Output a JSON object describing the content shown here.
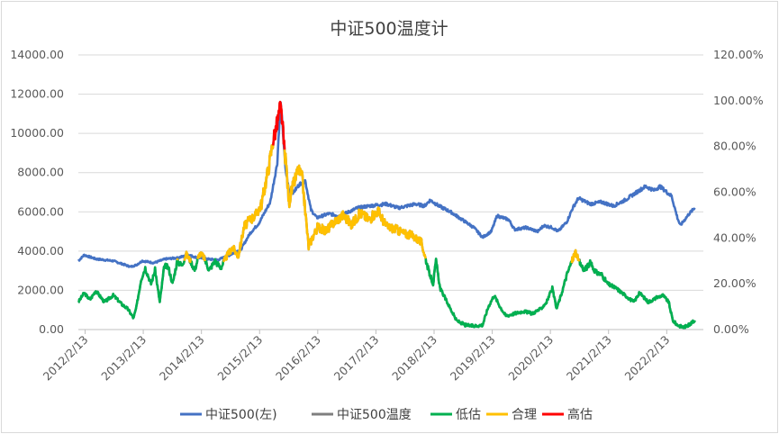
{
  "chart_data": {
    "type": "line",
    "title": "中证500温度计",
    "x_tick_labels": [
      "2012/2/13",
      "2013/2/13",
      "2014/2/13",
      "2015/2/13",
      "2016/2/13",
      "2017/2/13",
      "2018/2/13",
      "2019/2/13",
      "2020/2/13",
      "2021/2/13",
      "2022/2/13"
    ],
    "x_range": [
      "2012/1/1",
      "2022/9/30"
    ],
    "y_left": {
      "min": 0,
      "max": 14000,
      "step": 2000,
      "tick_labels": [
        "0.00",
        "2000.00",
        "4000.00",
        "6000.00",
        "8000.00",
        "10000.00",
        "12000.00",
        "14000.00"
      ]
    },
    "y_right": {
      "min": 0,
      "max": 1.2,
      "step": 0.2,
      "tick_labels": [
        "0.00%",
        "20.00%",
        "40.00%",
        "60.00%",
        "80.00%",
        "100.00%",
        "120.00%"
      ]
    },
    "grid": true,
    "legend_position": "bottom",
    "series_index": {
      "name": "中证500(左)",
      "axis": "left",
      "color": "#4472C4",
      "points": [
        [
          2012.0,
          3500
        ],
        [
          2012.1,
          3800
        ],
        [
          2012.3,
          3600
        ],
        [
          2012.6,
          3500
        ],
        [
          2012.9,
          3200
        ],
        [
          2013.0,
          3300
        ],
        [
          2013.1,
          3500
        ],
        [
          2013.3,
          3400
        ],
        [
          2013.5,
          3600
        ],
        [
          2013.7,
          3650
        ],
        [
          2013.9,
          3800
        ],
        [
          2014.0,
          3700
        ],
        [
          2014.2,
          3600
        ],
        [
          2014.4,
          3550
        ],
        [
          2014.6,
          3800
        ],
        [
          2014.8,
          4100
        ],
        [
          2014.95,
          4900
        ],
        [
          2015.1,
          5400
        ],
        [
          2015.3,
          6500
        ],
        [
          2015.42,
          8500
        ],
        [
          2015.45,
          10200
        ],
        [
          2015.48,
          11500
        ],
        [
          2015.52,
          10000
        ],
        [
          2015.56,
          8200
        ],
        [
          2015.62,
          7100
        ],
        [
          2015.7,
          7000
        ],
        [
          2015.8,
          7400
        ],
        [
          2015.9,
          7600
        ],
        [
          2016.0,
          6100
        ],
        [
          2016.1,
          5700
        ],
        [
          2016.3,
          5900
        ],
        [
          2016.5,
          5800
        ],
        [
          2016.8,
          6200
        ],
        [
          2017.0,
          6300
        ],
        [
          2017.3,
          6400
        ],
        [
          2017.5,
          6200
        ],
        [
          2017.8,
          6400
        ],
        [
          2017.95,
          6300
        ],
        [
          2018.05,
          6600
        ],
        [
          2018.2,
          6300
        ],
        [
          2018.4,
          6000
        ],
        [
          2018.6,
          5600
        ],
        [
          2018.8,
          5200
        ],
        [
          2018.95,
          4700
        ],
        [
          2019.1,
          5000
        ],
        [
          2019.2,
          5800
        ],
        [
          2019.4,
          5600
        ],
        [
          2019.5,
          5100
        ],
        [
          2019.7,
          5200
        ],
        [
          2019.9,
          5000
        ],
        [
          2020.0,
          5300
        ],
        [
          2020.15,
          5200
        ],
        [
          2020.25,
          5000
        ],
        [
          2020.4,
          5500
        ],
        [
          2020.5,
          6200
        ],
        [
          2020.6,
          6700
        ],
        [
          2020.8,
          6400
        ],
        [
          2021.0,
          6500
        ],
        [
          2021.2,
          6300
        ],
        [
          2021.4,
          6600
        ],
        [
          2021.6,
          7000
        ],
        [
          2021.75,
          7300
        ],
        [
          2021.9,
          7100
        ],
        [
          2022.0,
          7300
        ],
        [
          2022.2,
          6800
        ],
        [
          2022.3,
          5700
        ],
        [
          2022.35,
          5300
        ],
        [
          2022.5,
          5900
        ],
        [
          2022.6,
          6200
        ]
      ]
    },
    "series_temperature": {
      "name": "中证500温度",
      "axis": "right",
      "color": "#7F7F7F",
      "bands": [
        {
          "name": "低估",
          "color": "#00B050",
          "from": 0,
          "to": 0.3
        },
        {
          "name": "合理",
          "color": "#FFC000",
          "from": 0.3,
          "to": 0.8
        },
        {
          "name": "高估",
          "color": "#FF0000",
          "from": 0.8,
          "to": 1.2
        }
      ],
      "points": [
        [
          2012.0,
          0.12
        ],
        [
          2012.1,
          0.16
        ],
        [
          2012.2,
          0.13
        ],
        [
          2012.3,
          0.17
        ],
        [
          2012.45,
          0.12
        ],
        [
          2012.6,
          0.15
        ],
        [
          2012.75,
          0.11
        ],
        [
          2012.85,
          0.09
        ],
        [
          2012.95,
          0.05
        ],
        [
          2013.0,
          0.1
        ],
        [
          2013.08,
          0.22
        ],
        [
          2013.15,
          0.27
        ],
        [
          2013.25,
          0.2
        ],
        [
          2013.32,
          0.26
        ],
        [
          2013.4,
          0.12
        ],
        [
          2013.48,
          0.28
        ],
        [
          2013.55,
          0.27
        ],
        [
          2013.62,
          0.2
        ],
        [
          2013.7,
          0.3
        ],
        [
          2013.78,
          0.28
        ],
        [
          2013.85,
          0.33
        ],
        [
          2013.93,
          0.3
        ],
        [
          2014.0,
          0.26
        ],
        [
          2014.08,
          0.33
        ],
        [
          2014.15,
          0.32
        ],
        [
          2014.25,
          0.26
        ],
        [
          2014.35,
          0.3
        ],
        [
          2014.45,
          0.27
        ],
        [
          2014.55,
          0.32
        ],
        [
          2014.65,
          0.36
        ],
        [
          2014.75,
          0.32
        ],
        [
          2014.85,
          0.45
        ],
        [
          2014.95,
          0.48
        ],
        [
          2015.05,
          0.5
        ],
        [
          2015.15,
          0.55
        ],
        [
          2015.28,
          0.72
        ],
        [
          2015.35,
          0.83
        ],
        [
          2015.42,
          0.9
        ],
        [
          2015.47,
          0.97
        ],
        [
          2015.5,
          0.93
        ],
        [
          2015.53,
          0.82
        ],
        [
          2015.58,
          0.7
        ],
        [
          2015.62,
          0.55
        ],
        [
          2015.66,
          0.6
        ],
        [
          2015.72,
          0.65
        ],
        [
          2015.78,
          0.7
        ],
        [
          2015.85,
          0.66
        ],
        [
          2015.9,
          0.52
        ],
        [
          2015.96,
          0.36
        ],
        [
          2016.02,
          0.4
        ],
        [
          2016.12,
          0.45
        ],
        [
          2016.25,
          0.43
        ],
        [
          2016.4,
          0.47
        ],
        [
          2016.55,
          0.5
        ],
        [
          2016.7,
          0.46
        ],
        [
          2016.85,
          0.51
        ],
        [
          2017.0,
          0.48
        ],
        [
          2017.15,
          0.52
        ],
        [
          2017.3,
          0.45
        ],
        [
          2017.45,
          0.44
        ],
        [
          2017.6,
          0.42
        ],
        [
          2017.75,
          0.41
        ],
        [
          2017.9,
          0.38
        ],
        [
          2017.98,
          0.3
        ],
        [
          2018.03,
          0.25
        ],
        [
          2018.1,
          0.2
        ],
        [
          2018.15,
          0.3
        ],
        [
          2018.22,
          0.18
        ],
        [
          2018.3,
          0.14
        ],
        [
          2018.4,
          0.09
        ],
        [
          2018.5,
          0.04
        ],
        [
          2018.65,
          0.02
        ],
        [
          2018.8,
          0.015
        ],
        [
          2018.95,
          0.02
        ],
        [
          2019.05,
          0.1
        ],
        [
          2019.15,
          0.15
        ],
        [
          2019.25,
          0.1
        ],
        [
          2019.35,
          0.06
        ],
        [
          2019.5,
          0.07
        ],
        [
          2019.65,
          0.08
        ],
        [
          2019.8,
          0.07
        ],
        [
          2019.95,
          0.09
        ],
        [
          2020.05,
          0.12
        ],
        [
          2020.15,
          0.18
        ],
        [
          2020.22,
          0.09
        ],
        [
          2020.3,
          0.15
        ],
        [
          2020.4,
          0.24
        ],
        [
          2020.5,
          0.31
        ],
        [
          2020.55,
          0.34
        ],
        [
          2020.6,
          0.3
        ],
        [
          2020.7,
          0.26
        ],
        [
          2020.8,
          0.29
        ],
        [
          2020.9,
          0.25
        ],
        [
          2021.0,
          0.24
        ],
        [
          2021.1,
          0.2
        ],
        [
          2021.25,
          0.18
        ],
        [
          2021.4,
          0.15
        ],
        [
          2021.55,
          0.12
        ],
        [
          2021.65,
          0.16
        ],
        [
          2021.8,
          0.12
        ],
        [
          2021.95,
          0.14
        ],
        [
          2022.05,
          0.15
        ],
        [
          2022.15,
          0.12
        ],
        [
          2022.22,
          0.04
        ],
        [
          2022.3,
          0.02
        ],
        [
          2022.4,
          0.01
        ],
        [
          2022.5,
          0.02
        ],
        [
          2022.6,
          0.04
        ]
      ]
    }
  }
}
